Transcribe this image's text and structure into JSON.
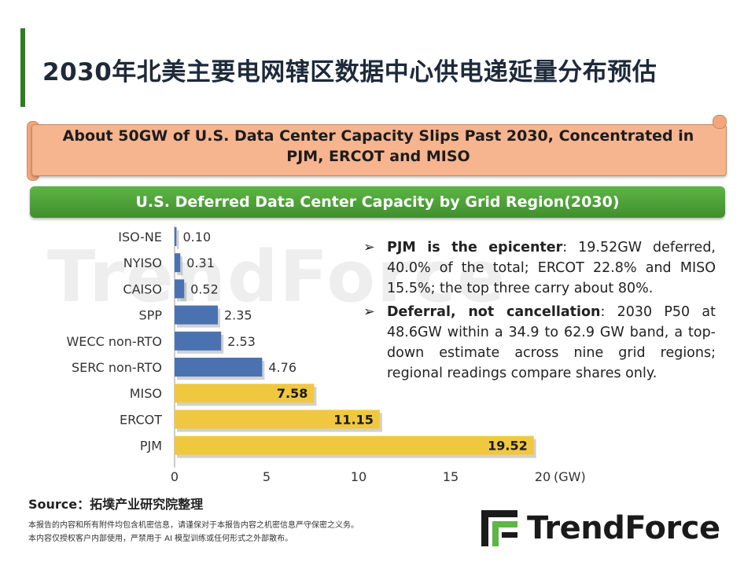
{
  "title": "2030年北美主要电网辖区数据中心供电递延量分布预估",
  "banner": {
    "line1": "About 50GW of U.S. Data Center Capacity Slips Past 2030, Concentrated in",
    "line2": "PJM, ERCOT and MISO"
  },
  "section_header": "U.S. Deferred Data Center Capacity by Grid Region(2030)",
  "watermark": "TrendForce",
  "bullets": [
    {
      "bold": "PJM is the epicenter",
      "text": ": 19.52GW deferred, 40.0% of the total; ERCOT 22.8% and MISO 15.5%; the top three carry about 80%."
    },
    {
      "bold": "Deferral, not cancellation",
      "text": ": 2030 P50 at 48.6GW within a 34.9 to 62.9 GW band, a top-down estimate across nine grid regions; regional readings compare shares only."
    }
  ],
  "bullet_marker": "➢",
  "source": "Source：拓墣产业研究院整理",
  "disclaimer": [
    "本报告的内容和所有附件均包含机密信息，请谨保对于本报告内容之机密信息严守保密之义务。",
    "本内容仅授权客户内部使用，严禁用于 AI 模型训练或任何形式之外部散布。"
  ],
  "logo_text": "TrendForce",
  "colors": {
    "blue": "#4a72b0",
    "gold": "#f0c840",
    "green": "#3f8f2c",
    "banner": "#f6b48f"
  },
  "chart_data": {
    "type": "bar",
    "orientation": "horizontal",
    "categories": [
      "ISO-NE",
      "NYISO",
      "CAISO",
      "SPP",
      "WECC non-RTO",
      "SERC non-RTO",
      "MISO",
      "ERCOT",
      "PJM"
    ],
    "values": [
      0.1,
      0.31,
      0.52,
      2.35,
      2.53,
      4.76,
      7.58,
      11.15,
      19.52
    ],
    "labels": [
      "0.10",
      "0.31",
      "0.52",
      "2.35",
      "2.53",
      "4.76",
      "7.58",
      "11.15",
      "19.52"
    ],
    "highlight": [
      false,
      false,
      false,
      false,
      false,
      false,
      true,
      true,
      true
    ],
    "xticks": [
      0,
      5,
      10,
      15,
      20
    ],
    "xlim": [
      0,
      20
    ],
    "xunit": "(GW)",
    "title": "U.S. Deferred Data Center Capacity by Grid Region(2030)"
  }
}
